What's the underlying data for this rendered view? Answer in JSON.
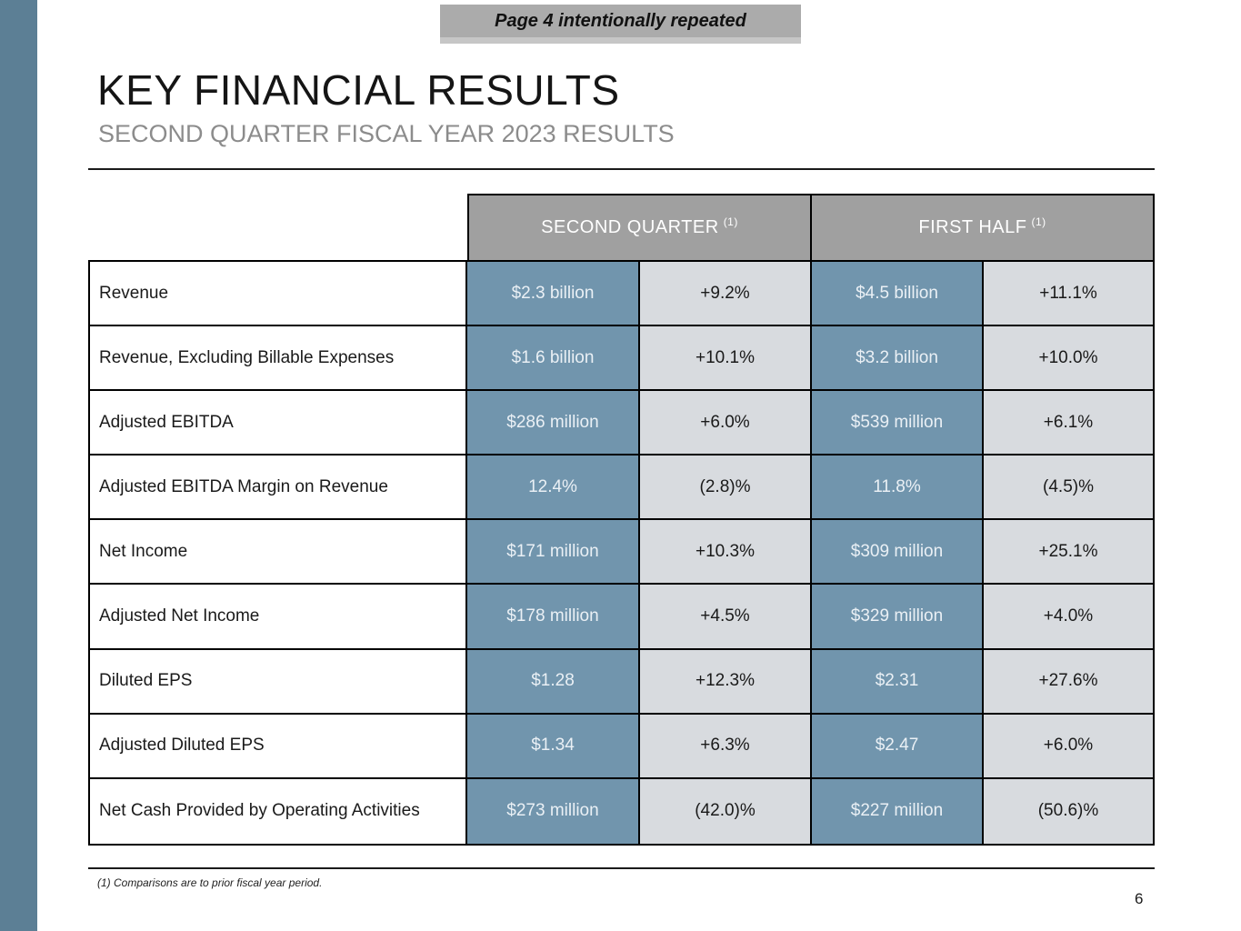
{
  "banner": {
    "text": "Page 4 intentionally repeated"
  },
  "title": "KEY FINANCIAL RESULTS",
  "subtitle": "SECOND QUARTER FISCAL YEAR 2023 RESULTS",
  "table": {
    "headers": [
      {
        "label": "SECOND QUARTER",
        "sup": "(1)"
      },
      {
        "label": "FIRST HALF",
        "sup": "(1)"
      }
    ],
    "rows": [
      {
        "label": "Revenue",
        "cells": [
          "$2.3 billion",
          "+9.2%",
          "$4.5 billion",
          "+11.1%"
        ]
      },
      {
        "label": "Revenue, Excluding Billable Expenses",
        "cells": [
          "$1.6 billion",
          "+10.1%",
          "$3.2 billion",
          "+10.0%"
        ]
      },
      {
        "label": "Adjusted EBITDA",
        "cells": [
          "$286 million",
          "+6.0%",
          "$539 million",
          "+6.1%"
        ]
      },
      {
        "label": "Adjusted EBITDA Margin on Revenue",
        "cells": [
          "12.4%",
          "(2.8)%",
          "11.8%",
          "(4.5)%"
        ]
      },
      {
        "label": "Net Income",
        "cells": [
          "$171 million",
          "+10.3%",
          "$309 million",
          "+25.1%"
        ]
      },
      {
        "label": "Adjusted Net Income",
        "cells": [
          "$178 million",
          "+4.5%",
          "$329 million",
          "+4.0%"
        ]
      },
      {
        "label": "Diluted EPS",
        "cells": [
          "$1.28",
          "+12.3%",
          "$2.31",
          "+27.6%"
        ]
      },
      {
        "label": "Adjusted Diluted EPS",
        "cells": [
          "$1.34",
          "+6.3%",
          "$2.47",
          "+6.0%"
        ]
      },
      {
        "label": "Net Cash Provided by Operating Activities",
        "cells": [
          "$273 million",
          "(42.0)%",
          "$227 million",
          "(50.6)%"
        ]
      }
    ]
  },
  "footnote": "(1) Comparisons are to prior fiscal year period.",
  "page_number": "6",
  "colors": {
    "accent_blue": "#7195ad",
    "cell_gray": "#d8dbdf",
    "header_gray": "#a0a0a0",
    "banner_gray": "#ababab",
    "sidebar_blue": "#5c7f95"
  }
}
